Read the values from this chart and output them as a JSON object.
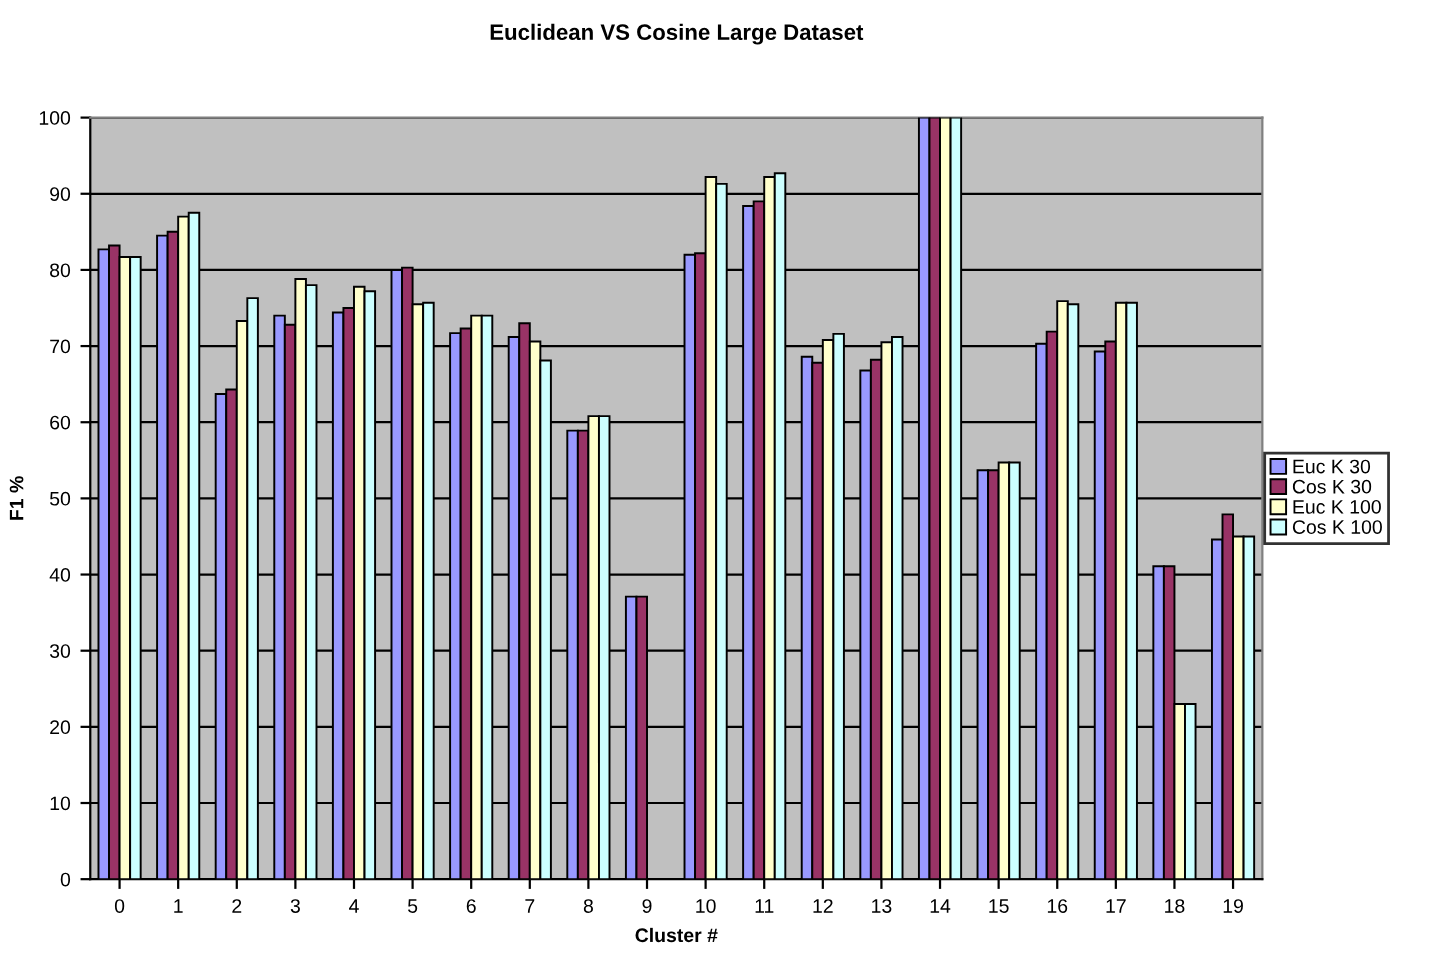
{
  "chart_data": {
    "type": "bar",
    "title": "Euclidean VS Cosine Large Dataset",
    "xlabel": "Cluster #",
    "ylabel": "F1 %",
    "categories": [
      "0",
      "1",
      "2",
      "3",
      "4",
      "5",
      "6",
      "7",
      "8",
      "9",
      "10",
      "11",
      "12",
      "13",
      "14",
      "15",
      "16",
      "17",
      "18",
      "19"
    ],
    "series": [
      {
        "name": "Euc K 30",
        "color": "#9999ff",
        "values": [
          82.7,
          84.5,
          63.7,
          74,
          74.4,
          80,
          71.7,
          71.2,
          58.9,
          37.1,
          82,
          88.4,
          68.6,
          66.8,
          100,
          53.7,
          70.3,
          69.3,
          41.1,
          44.6
        ]
      },
      {
        "name": "Cos K 30",
        "color": "#993366",
        "values": [
          83.2,
          85,
          64.3,
          72.8,
          75,
          80.3,
          72.3,
          73,
          58.9,
          37.1,
          82.2,
          89,
          67.8,
          68.2,
          100,
          53.7,
          71.9,
          70.6,
          41.1,
          47.9
        ]
      },
      {
        "name": "Euc K 100",
        "color": "#ffffcc",
        "values": [
          81.7,
          87,
          73.3,
          78.8,
          77.8,
          75.5,
          74,
          70.6,
          60.8,
          null,
          92.2,
          92.2,
          70.8,
          70.5,
          100,
          54.7,
          75.9,
          75.7,
          23,
          45
        ]
      },
      {
        "name": "Cos K 100",
        "color": "#ccffff",
        "values": [
          81.7,
          87.5,
          76.3,
          78,
          77.2,
          75.7,
          74,
          68.1,
          60.8,
          null,
          91.3,
          92.7,
          71.6,
          71.2,
          100,
          54.7,
          75.5,
          75.7,
          23,
          45
        ]
      }
    ],
    "ylim": [
      0,
      100
    ],
    "yticks": [
      0,
      10,
      20,
      30,
      40,
      50,
      60,
      70,
      80,
      90,
      100
    ],
    "grid": "y",
    "legend": "right"
  }
}
